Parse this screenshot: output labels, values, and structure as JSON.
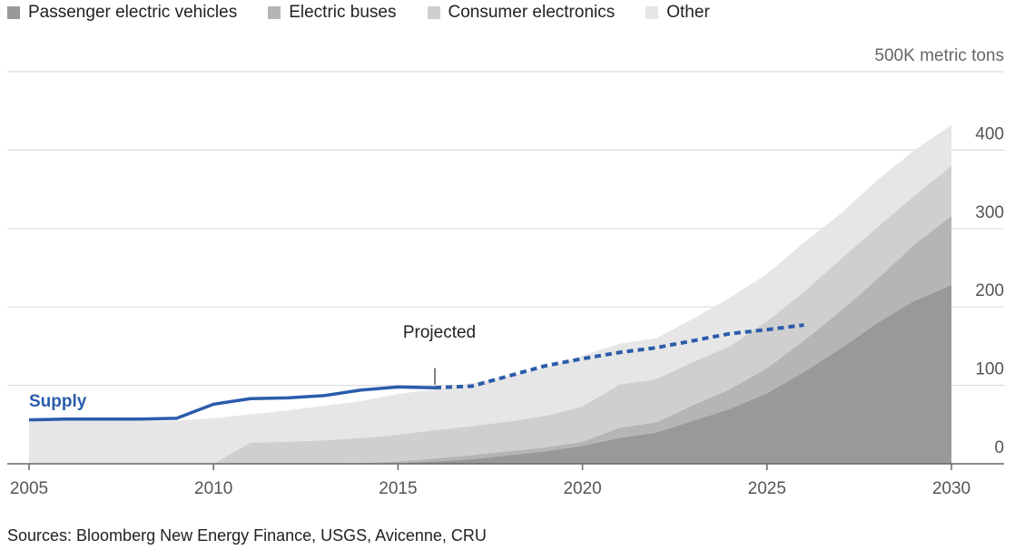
{
  "chart_data": {
    "type": "area",
    "stacked": true,
    "legend_position": "top-left",
    "unit_label": "500K metric tons",
    "x": [
      2005,
      2006,
      2007,
      2008,
      2009,
      2010,
      2011,
      2012,
      2013,
      2014,
      2015,
      2016,
      2017,
      2018,
      2019,
      2020,
      2021,
      2022,
      2023,
      2024,
      2025,
      2026,
      2027,
      2028,
      2029,
      2030
    ],
    "xlim": [
      2005,
      2030
    ],
    "ylim": [
      0,
      500
    ],
    "xticks": [
      "2005",
      "2010",
      "2015",
      "2020",
      "2025",
      "2030"
    ],
    "yticks": [
      "0",
      "100",
      "200",
      "300",
      "400"
    ],
    "grid": true,
    "series": [
      {
        "name": "Passenger electric vehicles",
        "color": "#999999",
        "values": [
          0,
          0,
          0,
          0,
          0,
          0,
          0,
          0,
          0,
          0,
          1,
          3,
          6,
          11,
          16,
          23,
          33,
          40,
          55,
          70,
          90,
          117,
          147,
          180,
          208,
          228
        ]
      },
      {
        "name": "Electric buses",
        "color": "#b5b5b5",
        "values": [
          0,
          0,
          0,
          0,
          0,
          0,
          0,
          0,
          0,
          1,
          2,
          4,
          5,
          5,
          5,
          5,
          13,
          13,
          20,
          25,
          32,
          40,
          48,
          56,
          72,
          88
        ]
      },
      {
        "name": "Consumer electronics",
        "color": "#cfcfcf",
        "values": [
          0,
          0,
          0,
          0,
          0,
          0,
          27,
          28,
          30,
          32,
          34,
          36,
          37,
          38,
          40,
          45,
          55,
          55,
          55,
          55,
          60,
          62,
          66,
          66,
          62,
          64
        ]
      },
      {
        "name": "Other",
        "color": "#e6e6e6",
        "values": [
          55,
          55,
          55,
          55,
          55,
          58,
          36,
          40,
          44,
          47,
          52,
          52,
          55,
          58,
          62,
          65,
          52,
          52,
          55,
          62,
          60,
          63,
          58,
          60,
          58,
          52
        ]
      }
    ],
    "supply": {
      "name": "Supply",
      "color": "#2a5caa",
      "actual_x": [
        2005,
        2006,
        2007,
        2008,
        2009,
        2010,
        2011,
        2012,
        2013,
        2014,
        2015,
        2016
      ],
      "actual_values": [
        56,
        57,
        57,
        57,
        58,
        76,
        83,
        84,
        87,
        94,
        98,
        97
      ],
      "projected_x": [
        2016,
        2017,
        2018,
        2019,
        2020,
        2021,
        2022,
        2023,
        2024,
        2025,
        2026
      ],
      "projected_values": [
        97,
        99,
        112,
        125,
        134,
        142,
        148,
        157,
        166,
        171,
        177
      ]
    },
    "annotation": {
      "text": "Projected",
      "x": 2016
    }
  },
  "source_text": "Sources: Bloomberg New Energy Finance, USGS, Avicenne, CRU"
}
